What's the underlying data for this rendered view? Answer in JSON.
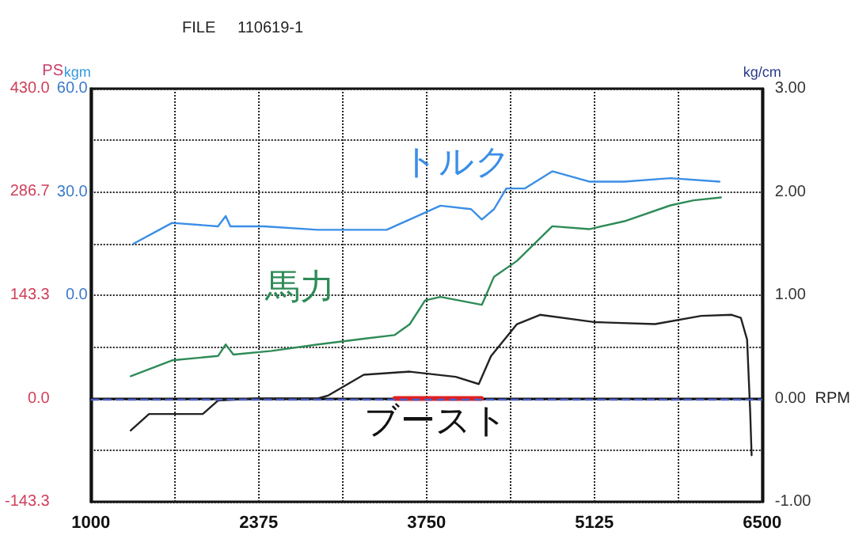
{
  "chart_data": {
    "type": "line",
    "title": "FILE     110619-1",
    "xlabel": "RPM",
    "ylabel": "PS",
    "y3label": "kgm",
    "y2label": "kg/cm",
    "xlim": [
      1000,
      6500
    ],
    "xticks": [
      1000,
      {
        "value": 1687.5,
        "label": null
      },
      2375,
      {
        "value": 3062.5,
        "label": null
      },
      3750,
      {
        "value": 4437.5,
        "label": null
      },
      5125,
      {
        "value": 5812.5,
        "label": null
      },
      6500
    ],
    "ylim": [
      -143.3,
      430
    ],
    "yticks": [
      -143.3,
      {
        "value": -71.7,
        "label": null
      },
      {
        "value": 0,
        "label": "0.0"
      },
      {
        "value": 71.7,
        "label": null
      },
      143.3,
      {
        "value": 215,
        "label": null
      },
      286.7,
      {
        "value": 358.3,
        "label": null
      },
      {
        "value": 430,
        "label": "430.0"
      }
    ],
    "y3lim": [
      -60,
      60
    ],
    "y3ticks": [
      {
        "value": 0,
        "label": "0.0"
      },
      {
        "value": 30,
        "label": "30.0"
      },
      {
        "value": 60,
        "label": "60.0"
      }
    ],
    "y2lim": [
      -1,
      3
    ],
    "y2ticks": [
      {
        "value": -1,
        "label": "-1.00"
      },
      {
        "value": 0,
        "label": "0.00"
      },
      {
        "value": 1,
        "label": "1.00"
      },
      {
        "value": 2,
        "label": "2.00"
      },
      {
        "value": 3,
        "label": "3.00"
      }
    ],
    "grid": true,
    "marker": "none",
    "line_style": "solid",
    "series": [
      {
        "name": "トルク",
        "color": "#3a8ee6",
        "axis": "y3",
        "x": [
          1352,
          1666,
          2042,
          2105,
          2143,
          2419,
          2859,
          3236,
          3424,
          3612,
          3864,
          4115,
          4203,
          4303,
          4404,
          4554,
          4780,
          5082,
          5371,
          5748,
          6150
        ],
        "values": [
          15,
          21,
          20,
          23,
          20,
          20,
          19,
          19,
          19,
          22,
          26,
          25,
          22,
          25,
          31,
          31,
          36,
          33,
          33,
          34,
          33
        ]
      },
      {
        "name": "馬力",
        "color": "#2e8b57",
        "x": [
          1327,
          1666,
          2042,
          2105,
          2168,
          2482,
          2859,
          3236,
          3487,
          3612,
          3738,
          3864,
          4203,
          4303,
          4491,
          4780,
          5082,
          5371,
          5748,
          5937,
          6162
        ],
        "values": [
          31,
          53,
          59,
          75,
          61,
          66,
          75,
          83,
          88,
          103,
          136,
          141,
          130,
          169,
          191,
          239,
          235,
          246,
          268,
          275,
          279
        ]
      },
      {
        "name": "ブースト",
        "color": "#222222",
        "axis": "y2",
        "x": [
          1327,
          1477,
          1917,
          2042,
          2356,
          2859,
          2947,
          3236,
          3612,
          3989,
          4178,
          4278,
          4491,
          4680,
          5120,
          5622,
          5999,
          6250,
          6325,
          6376,
          6401,
          6413
        ],
        "values": [
          -0.31,
          -0.15,
          -0.15,
          -0.02,
          0,
          0,
          0.03,
          0.23,
          0.26,
          0.21,
          0.14,
          0.41,
          0.72,
          0.81,
          0.74,
          0.72,
          0.8,
          0.81,
          0.78,
          0.57,
          -0.12,
          -0.55
        ]
      },
      {
        "color": "#e02020",
        "axis": "y2",
        "x": [
          3490,
          4200
        ],
        "values": [
          0,
          0
        ]
      }
    ],
    "ref_lines": [
      {
        "axis": "y",
        "value": 0,
        "color": "#4a5fc8",
        "line_style": "dashed"
      }
    ]
  }
}
